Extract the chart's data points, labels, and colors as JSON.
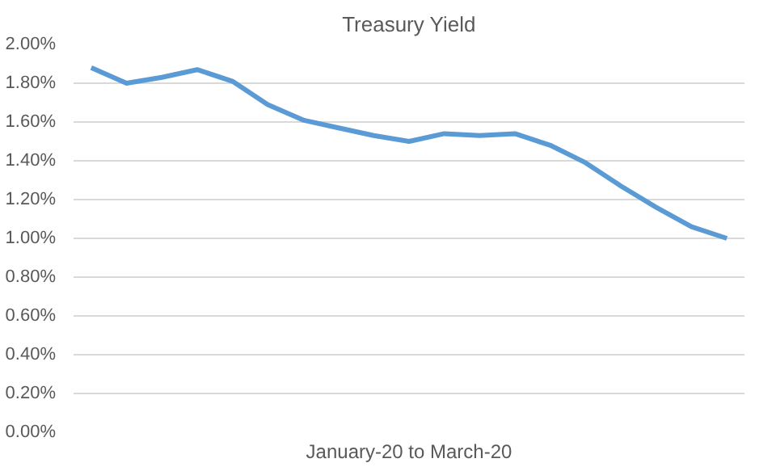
{
  "chart_data": {
    "type": "line",
    "title": "Treasury Yield",
    "xlabel": "January-20 to March-20",
    "categories": [
      null,
      null,
      null,
      null,
      null,
      null,
      null,
      null,
      null,
      null,
      null,
      null,
      null,
      null,
      null,
      null,
      null,
      null,
      null
    ],
    "series": [
      {
        "color": "#5b9bd5",
        "values": [
          1.88,
          1.8,
          1.83,
          1.87,
          1.81,
          1.69,
          1.61,
          1.57,
          1.53,
          1.5,
          1.54,
          1.53,
          1.54,
          1.48,
          1.39,
          1.27,
          1.16,
          1.06,
          1.0
        ]
      }
    ],
    "ylim": [
      0,
      2
    ],
    "yticks": [
      {
        "value": 0,
        "label": "0.00%"
      },
      {
        "value": 0.2,
        "label": "0.20%"
      },
      {
        "value": 0.4,
        "label": "0.40%"
      },
      {
        "value": 0.6,
        "label": "0.60%"
      },
      {
        "value": 0.8,
        "label": "0.80%"
      },
      {
        "value": 1.0,
        "label": "1.00%"
      },
      {
        "value": 1.2,
        "label": "1.20%"
      },
      {
        "value": 1.4,
        "label": "1.40%"
      },
      {
        "value": 1.6,
        "label": "1.60%"
      },
      {
        "value": 1.8,
        "label": "1.80%"
      },
      {
        "value": 2.0,
        "label": "2.00%"
      }
    ],
    "grid": "y",
    "tick_labels": "y",
    "marker": "none",
    "line_style": "solid"
  }
}
